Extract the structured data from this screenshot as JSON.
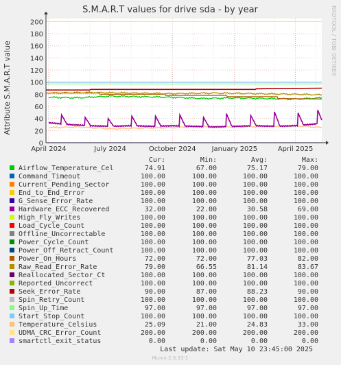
{
  "chart_data": {
    "type": "line",
    "title": "S.M.A.R.T values for drive sda - by year",
    "ylabel": "Attribute S.M.A.R.T value",
    "watermark": "RRDTOOL / TOBI OETIKER",
    "ylim": [
      0,
      205
    ],
    "y_ticks": [
      0,
      20,
      40,
      60,
      80,
      100,
      120,
      140,
      160,
      180,
      200
    ],
    "xlim": [
      "2024-03-28",
      "2025-05-10"
    ],
    "x_ticks": [
      {
        "label": "April 2024",
        "date": "2024-04-01"
      },
      {
        "label": "July 2024",
        "date": "2024-07-01"
      },
      {
        "label": "October 2024",
        "date": "2024-10-01"
      },
      {
        "label": "January 2025",
        "date": "2025-01-01"
      },
      {
        "label": "April 2025",
        "date": "2025-04-01"
      }
    ],
    "grid": true,
    "legend_header": {
      "cur": "Cur:",
      "min": "Min:",
      "avg": "Avg:",
      "max": "Max:"
    },
    "series": [
      {
        "name": "Airflow_Temperature_Cel",
        "color": "#00cc00",
        "cur": "74.91",
        "min": "67.00",
        "avg": "75.17",
        "max": "79.00",
        "x": [
          "2024-04-01",
          "2024-05-15",
          "2024-07-01",
          "2024-08-15",
          "2024-10-01",
          "2024-11-15",
          "2025-01-01",
          "2025-02-15",
          "2025-04-01",
          "2025-05-10"
        ],
        "y": [
          75,
          74,
          77,
          76,
          75,
          73,
          74,
          73,
          72,
          74
        ]
      },
      {
        "name": "Command_Timeout",
        "color": "#0066b3",
        "cur": "100.00",
        "min": "100.00",
        "avg": "100.00",
        "max": "100.00",
        "x": [
          "2024-03-28",
          "2025-05-10"
        ],
        "y": [
          100,
          100
        ]
      },
      {
        "name": "Current_Pending_Sector",
        "color": "#ff8000",
        "cur": "100.00",
        "min": "100.00",
        "avg": "100.00",
        "max": "100.00",
        "x": [
          "2024-03-28",
          "2025-05-10"
        ],
        "y": [
          100,
          100
        ]
      },
      {
        "name": "End_to_End_Error",
        "color": "#ffcc00",
        "cur": "100.00",
        "min": "100.00",
        "avg": "100.00",
        "max": "100.00",
        "x": [
          "2024-03-28",
          "2025-05-10"
        ],
        "y": [
          100,
          100
        ]
      },
      {
        "name": "G_Sense_Error_Rate",
        "color": "#330099",
        "cur": "100.00",
        "min": "100.00",
        "avg": "100.00",
        "max": "100.00",
        "x": [
          "2024-03-28",
          "2025-05-10"
        ],
        "y": [
          100,
          100
        ]
      },
      {
        "name": "Hardware_ECC_Recovered",
        "color": "#990099",
        "cur": "32.00",
        "min": "22.00",
        "avg": "30.58",
        "max": "69.00",
        "x": [
          "2024-04-01",
          "2024-05-01",
          "2024-06-01",
          "2024-07-01",
          "2024-08-01",
          "2024-09-01",
          "2024-10-01",
          "2024-11-01",
          "2024-12-01",
          "2025-01-01",
          "2025-02-01",
          "2025-03-01",
          "2025-04-01",
          "2025-05-10"
        ],
        "y": [
          33,
          30,
          28,
          27,
          28,
          27,
          28,
          27,
          26,
          27,
          28,
          27,
          28,
          32
        ]
      },
      {
        "name": "High_Fly_Writes",
        "color": "#ccff00",
        "cur": "100.00",
        "min": "100.00",
        "avg": "100.00",
        "max": "100.00",
        "x": [
          "2024-03-28",
          "2025-05-10"
        ],
        "y": [
          100,
          100
        ]
      },
      {
        "name": "Load_Cycle_Count",
        "color": "#ff0000",
        "cur": "100.00",
        "min": "100.00",
        "avg": "100.00",
        "max": "100.00",
        "x": [
          "2024-03-28",
          "2025-05-10"
        ],
        "y": [
          100,
          100
        ]
      },
      {
        "name": "Offline_Uncorrectable",
        "color": "#808080",
        "cur": "100.00",
        "min": "100.00",
        "avg": "100.00",
        "max": "100.00",
        "x": [
          "2024-03-28",
          "2025-05-10"
        ],
        "y": [
          100,
          100
        ]
      },
      {
        "name": "Power_Cycle_Count",
        "color": "#008f00",
        "cur": "100.00",
        "min": "100.00",
        "avg": "100.00",
        "max": "100.00",
        "x": [
          "2024-03-28",
          "2025-05-10"
        ],
        "y": [
          100,
          100
        ]
      },
      {
        "name": "Power_Off_Retract_Count",
        "color": "#00487d",
        "cur": "100.00",
        "min": "100.00",
        "avg": "100.00",
        "max": "100.00",
        "x": [
          "2024-03-28",
          "2025-05-10"
        ],
        "y": [
          100,
          100
        ]
      },
      {
        "name": "Power_On_Hours",
        "color": "#b35a00",
        "cur": "72.00",
        "min": "72.00",
        "avg": "77.03",
        "max": "82.00",
        "x": [
          "2024-03-28",
          "2024-06-15",
          "2024-06-16",
          "2024-09-20",
          "2024-09-21",
          "2024-12-20",
          "2024-12-21",
          "2025-03-05",
          "2025-03-06",
          "2025-05-10"
        ],
        "y": [
          82,
          82,
          80,
          80,
          78,
          78,
          76,
          76,
          73,
          72
        ]
      },
      {
        "name": "Raw_Read_Error_Rate",
        "color": "#b38f00",
        "cur": "79.00",
        "min": "66.55",
        "avg": "81.14",
        "max": "83.67",
        "x": [
          "2024-04-01",
          "2024-06-01",
          "2024-08-01",
          "2024-10-01",
          "2024-12-01",
          "2025-02-01",
          "2025-04-01",
          "2025-05-10"
        ],
        "y": [
          82,
          83,
          82,
          81,
          82,
          81,
          80,
          79
        ]
      },
      {
        "name": "Reallocated_Sector_Ct",
        "color": "#6b006b",
        "cur": "100.00",
        "min": "100.00",
        "avg": "100.00",
        "max": "100.00",
        "x": [
          "2024-03-28",
          "2025-05-10"
        ],
        "y": [
          100,
          100
        ]
      },
      {
        "name": "Reported_Uncorrect",
        "color": "#8fb300",
        "cur": "100.00",
        "min": "100.00",
        "avg": "100.00",
        "max": "100.00",
        "x": [
          "2024-03-28",
          "2025-05-10"
        ],
        "y": [
          100,
          100
        ]
      },
      {
        "name": "Seek_Error_Rate",
        "color": "#b30000",
        "cur": "90.00",
        "min": "87.00",
        "avg": "88.23",
        "max": "90.00",
        "x": [
          "2024-03-28",
          "2024-06-01",
          "2024-06-02",
          "2025-02-01",
          "2025-02-02",
          "2025-05-10"
        ],
        "y": [
          87,
          87,
          88,
          88,
          89,
          90
        ]
      },
      {
        "name": "Spin_Retry_Count",
        "color": "#bebebe",
        "cur": "100.00",
        "min": "100.00",
        "avg": "100.00",
        "max": "100.00",
        "x": [
          "2024-03-28",
          "2025-05-10"
        ],
        "y": [
          100,
          100
        ]
      },
      {
        "name": "Spin_Up_Time",
        "color": "#80ff80",
        "cur": "97.00",
        "min": "97.00",
        "avg": "97.00",
        "max": "97.00",
        "x": [
          "2024-03-28",
          "2025-05-10"
        ],
        "y": [
          97,
          97
        ]
      },
      {
        "name": "Start_Stop_Count",
        "color": "#80c9ff",
        "cur": "100.00",
        "min": "100.00",
        "avg": "100.00",
        "max": "100.00",
        "x": [
          "2024-03-28",
          "2025-05-10"
        ],
        "y": [
          100,
          100
        ]
      },
      {
        "name": "Temperature_Celsius",
        "color": "#ffc080",
        "cur": "25.09",
        "min": "21.00",
        "avg": "24.83",
        "max": "33.00",
        "x": [
          "2024-04-01",
          "2024-05-15",
          "2024-07-01",
          "2024-08-15",
          "2024-10-01",
          "2024-11-15",
          "2025-01-01",
          "2025-02-15",
          "2025-04-01",
          "2025-05-10"
        ],
        "y": [
          25,
          26,
          23,
          24,
          25,
          27,
          26,
          27,
          28,
          25
        ]
      },
      {
        "name": "UDMA_CRC_Error_Count",
        "color": "#ffe680",
        "cur": "200.00",
        "min": "200.00",
        "avg": "200.00",
        "max": "200.00",
        "x": [
          "2024-03-28",
          "2025-05-10"
        ],
        "y": [
          200,
          200
        ]
      },
      {
        "name": "smartctl_exit_status",
        "color": "#aa80ff",
        "cur": "0.00",
        "min": "0.00",
        "avg": "0.00",
        "max": "0.00",
        "x": [
          "2024-03-28",
          "2025-05-10"
        ],
        "y": [
          0,
          0
        ]
      }
    ],
    "hecc_spikes": [
      {
        "date": "2024-04-20",
        "peak": 46
      },
      {
        "date": "2024-05-25",
        "peak": 42
      },
      {
        "date": "2024-06-28",
        "peak": 40
      },
      {
        "date": "2024-08-02",
        "peak": 44
      },
      {
        "date": "2024-09-06",
        "peak": 44
      },
      {
        "date": "2024-10-12",
        "peak": 46
      },
      {
        "date": "2024-11-16",
        "peak": 42
      },
      {
        "date": "2024-12-20",
        "peak": 48
      },
      {
        "date": "2025-01-25",
        "peak": 45
      },
      {
        "date": "2025-03-01",
        "peak": 51
      },
      {
        "date": "2025-04-05",
        "peak": 49
      },
      {
        "date": "2025-05-04",
        "peak": 54
      }
    ],
    "last_update": "Last update:  Sat May 10 23:45:00 2025",
    "footer": "Munin 2.0.33-1"
  }
}
